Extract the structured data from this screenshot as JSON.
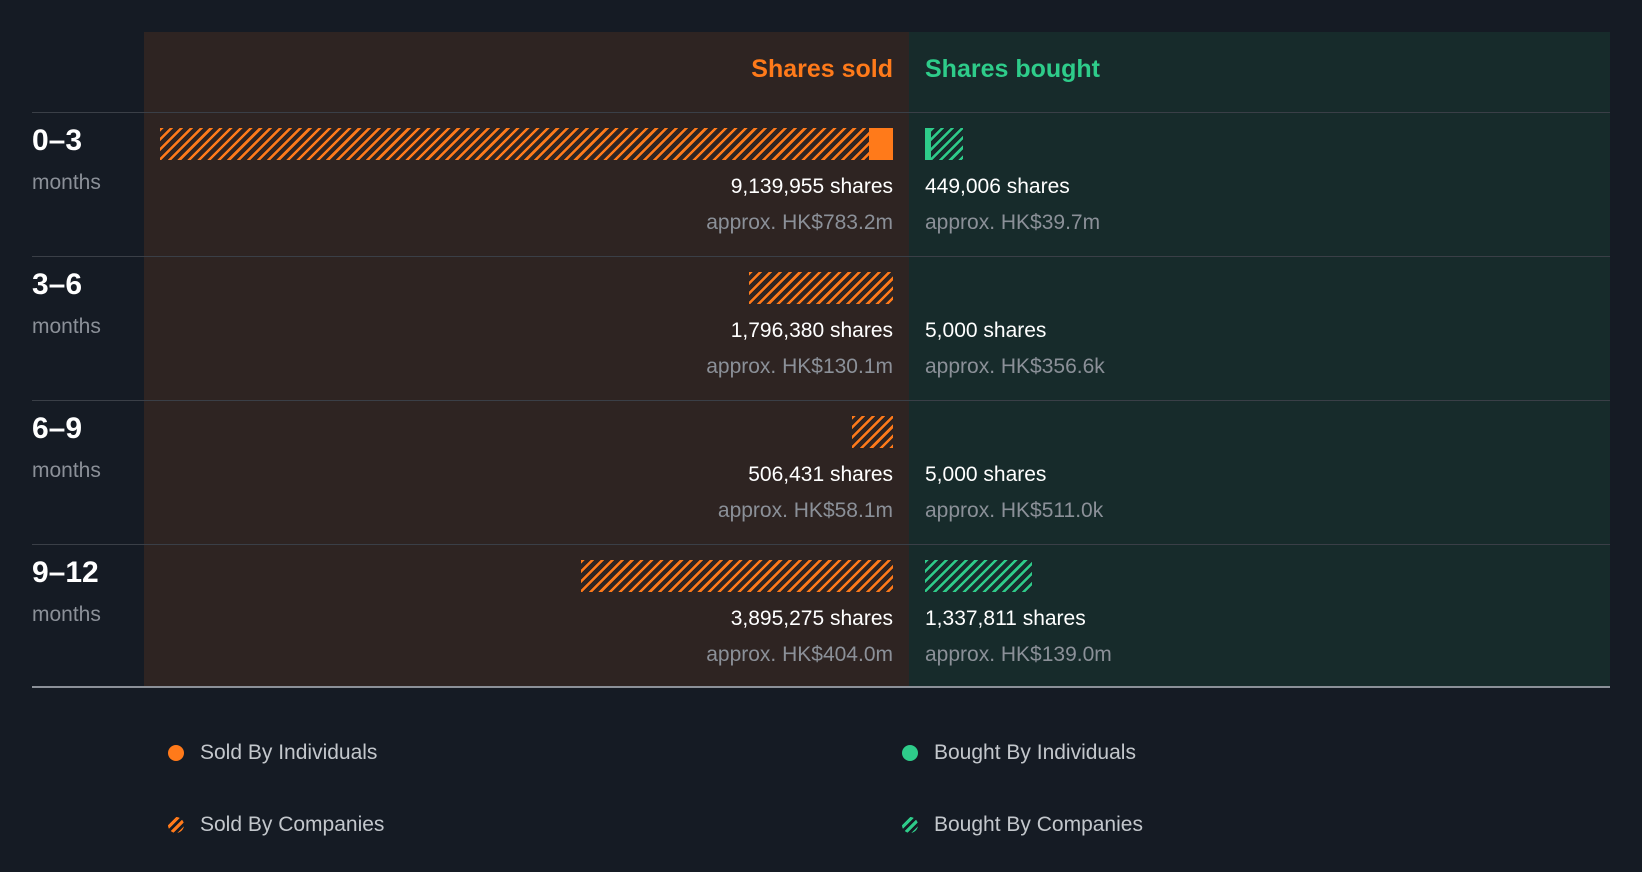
{
  "chart_data": {
    "type": "bar",
    "headers": {
      "sold": "Shares sold",
      "bought": "Shares bought"
    },
    "colors": {
      "sold": "#ff7a1a",
      "bought": "#2ecc8a"
    },
    "rows": [
      {
        "period": "0–3",
        "unit": "months",
        "sold": {
          "shares_label": "9,139,955 shares",
          "approx": "approx. HK$783.2m",
          "companies": 8839955,
          "individuals": 300000
        },
        "bought": {
          "shares_label": "449,006 shares",
          "approx": "approx. HK$39.7m",
          "companies": 400000,
          "individuals": 49006
        }
      },
      {
        "period": "3–6",
        "unit": "months",
        "sold": {
          "shares_label": "1,796,380 shares",
          "approx": "approx. HK$130.1m",
          "companies": 1796380,
          "individuals": 0
        },
        "bought": {
          "shares_label": "5,000 shares",
          "approx": "approx. HK$356.6k",
          "companies": 5000,
          "individuals": 0
        }
      },
      {
        "period": "6–9",
        "unit": "months",
        "sold": {
          "shares_label": "506,431 shares",
          "approx": "approx. HK$58.1m",
          "companies": 506431,
          "individuals": 0
        },
        "bought": {
          "shares_label": "5,000 shares",
          "approx": "approx. HK$511.0k",
          "companies": 5000,
          "individuals": 0
        }
      },
      {
        "period": "9–12",
        "unit": "months",
        "sold": {
          "shares_label": "3,895,275 shares",
          "approx": "approx. HK$404.0m",
          "companies": 3895275,
          "individuals": 0
        },
        "bought": {
          "shares_label": "1,337,811 shares",
          "approx": "approx. HK$139.0m",
          "companies": 1337811,
          "individuals": 0
        }
      }
    ],
    "legend": {
      "sold_individuals": "Sold By Individuals",
      "sold_companies": "Sold By Companies",
      "bought_individuals": "Bought By Individuals",
      "bought_companies": "Bought By Companies"
    }
  }
}
